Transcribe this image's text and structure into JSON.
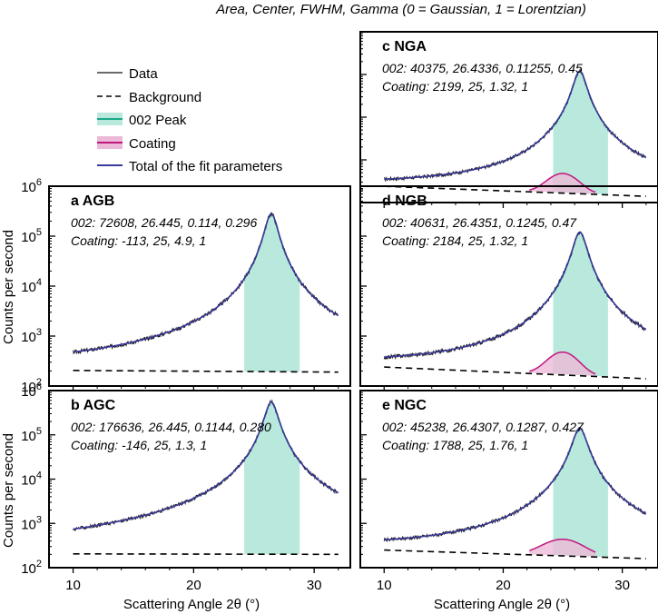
{
  "header_note": "Area, Center, FWHM, Gamma (0 = Gaussian, 1 = Lorentzian)",
  "colors": {
    "data": "#111111",
    "background": "#000000",
    "peak_line": "#1aa88a",
    "peak_fill": "#b9e9dc",
    "coating_line": "#c0177f",
    "coating_fill": "#ecbad8",
    "total": "#3a3a9a"
  },
  "legend": {
    "items": [
      {
        "key": "data",
        "label": "Data"
      },
      {
        "key": "background",
        "label": "Background"
      },
      {
        "key": "peak",
        "label": "002 Peak"
      },
      {
        "key": "coating",
        "label": "Coating"
      },
      {
        "key": "total",
        "label": "Total of the fit parameters"
      }
    ]
  },
  "axes": {
    "xlabel": "Scattering Angle 2θ (°)",
    "ylabel": "Counts per second",
    "xticks": [
      10,
      20,
      30
    ],
    "xlim": [
      8,
      33
    ],
    "ylim": [
      100,
      1000000
    ],
    "yscale": "log",
    "ytick_labels": [
      {
        "base": "10",
        "exp": "2"
      },
      {
        "base": "10",
        "exp": "3"
      },
      {
        "base": "10",
        "exp": "4"
      },
      {
        "base": "10",
        "exp": "5"
      },
      {
        "base": "10",
        "exp": "6"
      }
    ]
  },
  "chart_data": [
    {
      "id": "c",
      "type": "line",
      "title": "c NGA",
      "line1": "002: 40375, 26.4336, 0.11255, 0.45",
      "line2": "Coating: 2199, 25, 1.32, 1",
      "peak": {
        "area": 40375,
        "center": 26.4336,
        "fwhm": 0.11255,
        "gamma": 0.45
      },
      "coating": {
        "area": 2199,
        "center": 25,
        "fwhm": 1.32,
        "gamma": 1
      },
      "background": {
        "x": [
          10,
          32
        ],
        "y": [
          240,
          140
        ]
      },
      "peak_height": 120000
    },
    {
      "id": "a",
      "type": "line",
      "title": "a AGB",
      "line1": "002: 72608, 26.445, 0.114, 0.296",
      "line2": "Coating: -113, 25, 4.9, 1",
      "peak": {
        "area": 72608,
        "center": 26.445,
        "fwhm": 0.114,
        "gamma": 0.296
      },
      "coating": {
        "area": -113,
        "center": 25,
        "fwhm": 4.9,
        "gamma": 1
      },
      "background": {
        "x": [
          10,
          32
        ],
        "y": [
          205,
          190
        ]
      },
      "peak_height": 280000
    },
    {
      "id": "d",
      "type": "line",
      "title": "d NGB",
      "line1": "002: 40631, 26.4351, 0.1245, 0.47",
      "line2": "Coating: 2184, 25, 1.32, 1",
      "peak": {
        "area": 40631,
        "center": 26.4351,
        "fwhm": 0.1245,
        "gamma": 0.47
      },
      "coating": {
        "area": 2184,
        "center": 25,
        "fwhm": 1.32,
        "gamma": 1
      },
      "background": {
        "x": [
          10,
          32
        ],
        "y": [
          240,
          140
        ]
      },
      "peak_height": 120000
    },
    {
      "id": "b",
      "type": "line",
      "title": "b AGC",
      "line1": "002: 176636, 26.445, 0.1144, 0.280",
      "line2": "Coating: -146, 25, 1.3, 1",
      "peak": {
        "area": 176636,
        "center": 26.445,
        "fwhm": 0.1144,
        "gamma": 0.28
      },
      "coating": {
        "area": -146,
        "center": 25,
        "fwhm": 1.3,
        "gamma": 1
      },
      "background": {
        "x": [
          10,
          32
        ],
        "y": [
          205,
          200
        ]
      },
      "peak_height": 550000
    },
    {
      "id": "e",
      "type": "line",
      "title": "e NGC",
      "line1": "002: 45238, 26.4307, 0.1287, 0.427",
      "line2": "Coating: 1788, 25, 1.76, 1",
      "peak": {
        "area": 45238,
        "center": 26.4307,
        "fwhm": 0.1287,
        "gamma": 0.427
      },
      "coating": {
        "area": 1788,
        "center": 25,
        "fwhm": 1.76,
        "gamma": 1
      },
      "background": {
        "x": [
          10,
          32
        ],
        "y": [
          250,
          160
        ]
      },
      "peak_height": 140000
    }
  ]
}
